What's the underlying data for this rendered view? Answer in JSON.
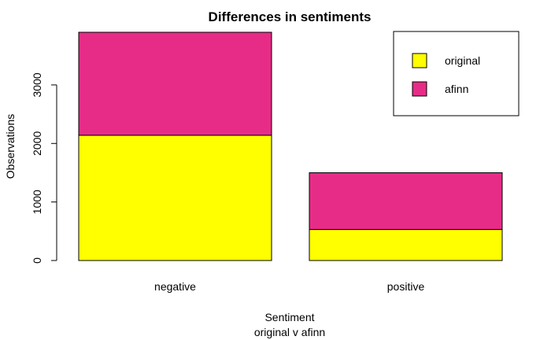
{
  "chart_data": {
    "type": "bar",
    "stacked": true,
    "title": "Differences in sentiments",
    "xlabel": "Sentiment",
    "xlabel_sub": "original v afinn",
    "ylabel": "Observations",
    "categories": [
      "negative",
      "positive"
    ],
    "series": [
      {
        "name": "original",
        "values": [
          2140,
          530
        ],
        "color": "#ffff00"
      },
      {
        "name": "afinn",
        "values": [
          1760,
          970
        ],
        "color": "#e72c87"
      }
    ],
    "ylim": [
      0,
      3900
    ],
    "yticks": [
      0,
      1000,
      2000,
      3000
    ],
    "ytick_labels": [
      "0",
      "1000",
      "2000",
      "3000"
    ],
    "grid": false,
    "legend": {
      "position": "top-right",
      "entries": [
        "original",
        "afinn"
      ]
    }
  }
}
